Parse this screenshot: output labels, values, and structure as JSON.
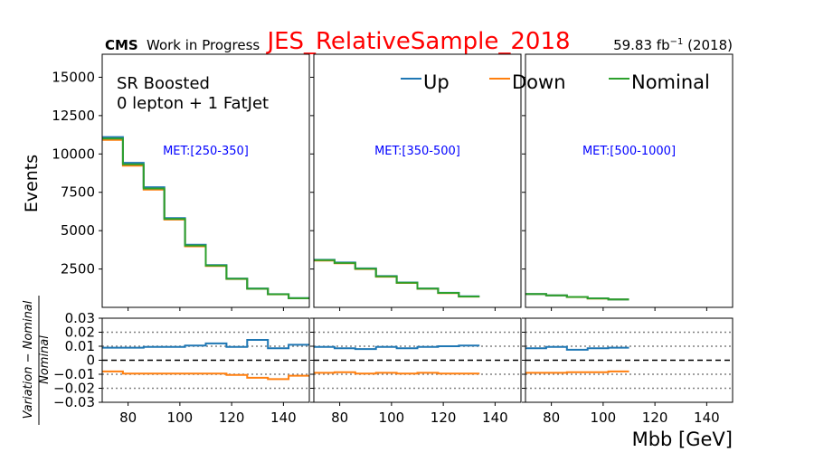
{
  "header": {
    "cms_label": "CMS",
    "wip_label": "Work in Progress",
    "title": "JES_RelativeSample_2018",
    "lumi_prefix": "59.83 fb",
    "lumi_exp": "−1",
    "lumi_suffix": " (2018)"
  },
  "annotations": {
    "region_line1": "SR Boosted",
    "region_line2": "0 lepton + 1 FatJet"
  },
  "colors": {
    "up": "#1f77b4",
    "down": "#ff7f0e",
    "nominal": "#2ca02c",
    "title": "#ff0000",
    "met_label": "#0000ff",
    "reference_line": "#000000",
    "band_line": "#808080"
  },
  "chart_data": {
    "type": "line",
    "style": "step histogram",
    "x_edges": [
      70,
      78,
      86,
      94,
      102,
      110,
      118,
      126,
      134,
      142,
      150
    ],
    "xlim": [
      70,
      150
    ],
    "x_ticks": [
      80,
      100,
      120,
      140
    ],
    "xlabel": "Mbb [GeV]",
    "ylabel": "Events",
    "ylim": [
      0,
      16500
    ],
    "y_ticks": [
      2500,
      5000,
      7500,
      10000,
      12500,
      15000
    ],
    "ratio_ylabel_numerator": "Variation − Nominal",
    "ratio_ylabel_denominator": "Nominal",
    "ratio_ylim": [
      -0.03,
      0.03
    ],
    "ratio_ticks": [
      0.03,
      0.02,
      0.01,
      0,
      -0.01,
      -0.02,
      -0.03
    ],
    "ratio_tick_labels": [
      "0.03",
      "0.02",
      "0.01",
      "0",
      "−0.01",
      "−0.02",
      "−0.03"
    ],
    "ratio_dotted_lines": [
      0.02,
      0.01,
      -0.01,
      -0.02
    ],
    "legend": {
      "placement": "top",
      "entries": [
        "Up",
        "Down",
        "Nominal"
      ]
    },
    "panels": [
      {
        "label": "MET:[250-350]",
        "series": [
          {
            "name": "Up",
            "values": [
              11100,
              9420,
              7830,
              5820,
              4080,
              2760,
              1880,
              1230,
              860,
              600
            ]
          },
          {
            "name": "Down",
            "values": [
              10920,
              9240,
              7670,
              5720,
              3980,
              2700,
              1850,
              1210,
              850,
              590
            ]
          },
          {
            "name": "Nominal",
            "values": [
              11000,
              9330,
              7750,
              5770,
              4030,
              2730,
              1865,
              1215,
              852,
              595
            ]
          }
        ],
        "ratio": [
          {
            "name": "Up",
            "values": [
              0.009,
              0.009,
              0.0095,
              0.0095,
              0.0105,
              0.012,
              0.0095,
              0.0145,
              0.0085,
              0.011
            ]
          },
          {
            "name": "Down",
            "values": [
              -0.008,
              -0.0095,
              -0.0095,
              -0.0095,
              -0.0095,
              -0.0095,
              -0.0105,
              -0.0125,
              -0.0135,
              -0.011
            ]
          }
        ]
      },
      {
        "label": "MET:[350-500]",
        "series": [
          {
            "name": "Up",
            "values": [
              3100,
              2920,
              2540,
              2040,
              1620,
              1230,
              950,
              720
            ]
          },
          {
            "name": "Down",
            "values": [
              3050,
              2870,
              2500,
              2000,
              1590,
              1210,
              930,
              700
            ]
          },
          {
            "name": "Nominal",
            "values": [
              3075,
              2895,
              2520,
              2020,
              1605,
              1220,
              940,
              710
            ]
          }
        ],
        "ratio": [
          {
            "name": "Up",
            "values": [
              0.0095,
              0.0085,
              0.008,
              0.0095,
              0.0085,
              0.0095,
              0.01,
              0.0105
            ]
          },
          {
            "name": "Down",
            "values": [
              -0.009,
              -0.0085,
              -0.0095,
              -0.009,
              -0.0095,
              -0.009,
              -0.0095,
              -0.0095
            ]
          }
        ]
      },
      {
        "label": "MET:[500-1000]",
        "series": [
          {
            "name": "Up",
            "values": [
              870,
              780,
              680,
              590,
              520
            ]
          },
          {
            "name": "Down",
            "values": [
              860,
              770,
              670,
              580,
              510
            ]
          },
          {
            "name": "Nominal",
            "values": [
              865,
              775,
              675,
              585,
              515
            ]
          }
        ],
        "ratio": [
          {
            "name": "Up",
            "values": [
              0.0085,
              0.0095,
              0.0075,
              0.0085,
              0.009
            ]
          },
          {
            "name": "Down",
            "values": [
              -0.009,
              -0.009,
              -0.0085,
              -0.0085,
              -0.008
            ]
          }
        ]
      }
    ]
  }
}
